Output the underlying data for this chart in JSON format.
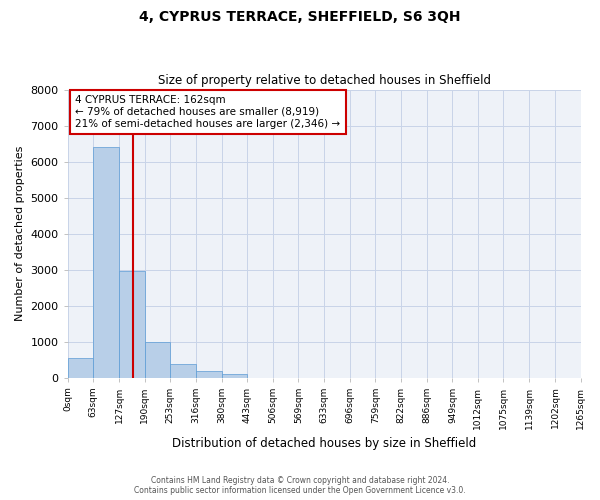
{
  "title": "4, CYPRUS TERRACE, SHEFFIELD, S6 3QH",
  "subtitle": "Size of property relative to detached houses in Sheffield",
  "xlabel": "Distribution of detached houses by size in Sheffield",
  "ylabel": "Number of detached properties",
  "bar_values": [
    550,
    6400,
    2950,
    1000,
    380,
    175,
    90,
    0,
    0,
    0,
    0,
    0,
    0,
    0,
    0,
    0,
    0,
    0,
    0,
    0
  ],
  "bar_labels": [
    "0sqm",
    "63sqm",
    "127sqm",
    "190sqm",
    "253sqm",
    "316sqm",
    "380sqm",
    "443sqm",
    "506sqm",
    "569sqm",
    "633sqm",
    "696sqm",
    "759sqm",
    "822sqm",
    "886sqm",
    "949sqm",
    "1012sqm",
    "1075sqm",
    "1139sqm",
    "1202sqm",
    "1265sqm"
  ],
  "bar_color": "#b8cfe8",
  "bar_edge_color": "#5b9bd5",
  "vline_color": "#cc0000",
  "vline_x_val": 162,
  "ylim": [
    0,
    8000
  ],
  "yticks": [
    0,
    1000,
    2000,
    3000,
    4000,
    5000,
    6000,
    7000,
    8000
  ],
  "annotation_title": "4 CYPRUS TERRACE: 162sqm",
  "annotation_line1": "← 79% of detached houses are smaller (8,919)",
  "annotation_line2": "21% of semi-detached houses are larger (2,346) →",
  "annotation_box_color": "#cc0000",
  "footer_line1": "Contains HM Land Registry data © Crown copyright and database right 2024.",
  "footer_line2": "Contains public sector information licensed under the Open Government Licence v3.0.",
  "bg_color": "#eef2f8",
  "grid_color": "#c8d4e8"
}
